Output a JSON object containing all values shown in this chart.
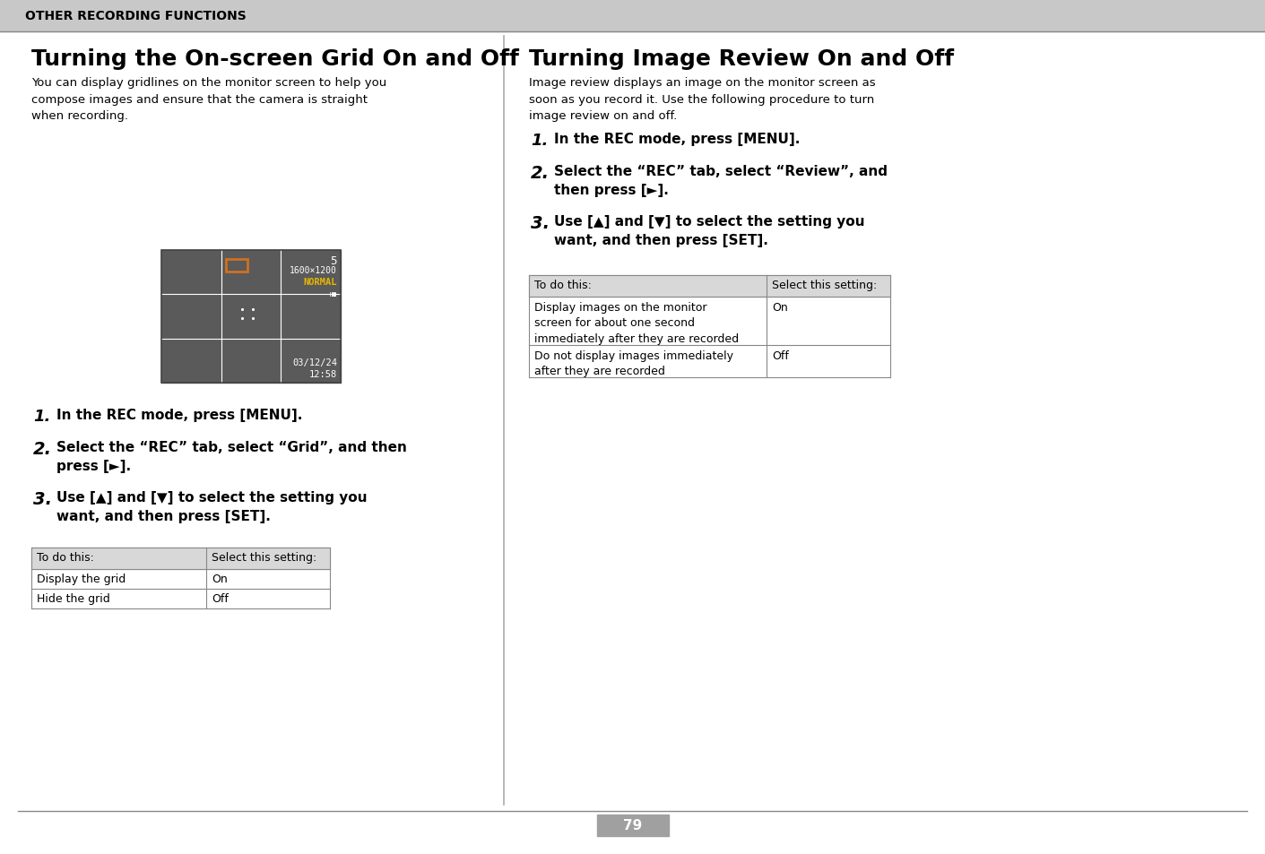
{
  "page_bg": "#ffffff",
  "header_bg": "#c8c8c8",
  "header_text": "OTHER RECORDING FUNCTIONS",
  "left_title": "Turning the On-screen Grid On and Off",
  "right_title": "Turning Image Review On and Off",
  "left_desc": "You can display gridlines on the monitor screen to help you\ncompose images and ensure that the camera is straight\nwhen recording.",
  "right_desc": "Image review displays an image on the monitor screen as\nsoon as you record it. Use the following procedure to turn\nimage review on and off.",
  "left_steps": [
    "In the REC mode, press [MENU].",
    "Select the “REC” tab, select “Grid”, and then\npress [►].",
    "Use [▲] and [▼] to select the setting you\nwant, and then press [SET]."
  ],
  "right_steps": [
    "In the REC mode, press [MENU].",
    "Select the “REC” tab, select “Review”, and\nthen press [►].",
    "Use [▲] and [▼] to select the setting you\nwant, and then press [SET]."
  ],
  "left_table_header": [
    "To do this:",
    "Select this setting:"
  ],
  "left_table_rows": [
    [
      "Display the grid",
      "On"
    ],
    [
      "Hide the grid",
      "Off"
    ]
  ],
  "right_table_header": [
    "To do this:",
    "Select this setting:"
  ],
  "right_table_rows": [
    [
      "Display images on the monitor\nscreen for about one second\nimmediately after they are recorded",
      "On"
    ],
    [
      "Do not display images immediately\nafter they are recorded",
      "Off"
    ]
  ],
  "page_number": "79",
  "camera_screen_bg": "#5a5a5a",
  "camera_grid_color": "#ffffff",
  "camera_text_color": "#ffffff",
  "camera_normal_color": "#e8b800",
  "camera_orange_color": "#d07020",
  "divider_color": "#aaaaaa",
  "table_header_bg": "#d8d8d8",
  "table_border_color": "#888888",
  "header_text_color": "#000000",
  "page_num_bg": "#a0a0a0",
  "page_num_color": "#ffffff"
}
